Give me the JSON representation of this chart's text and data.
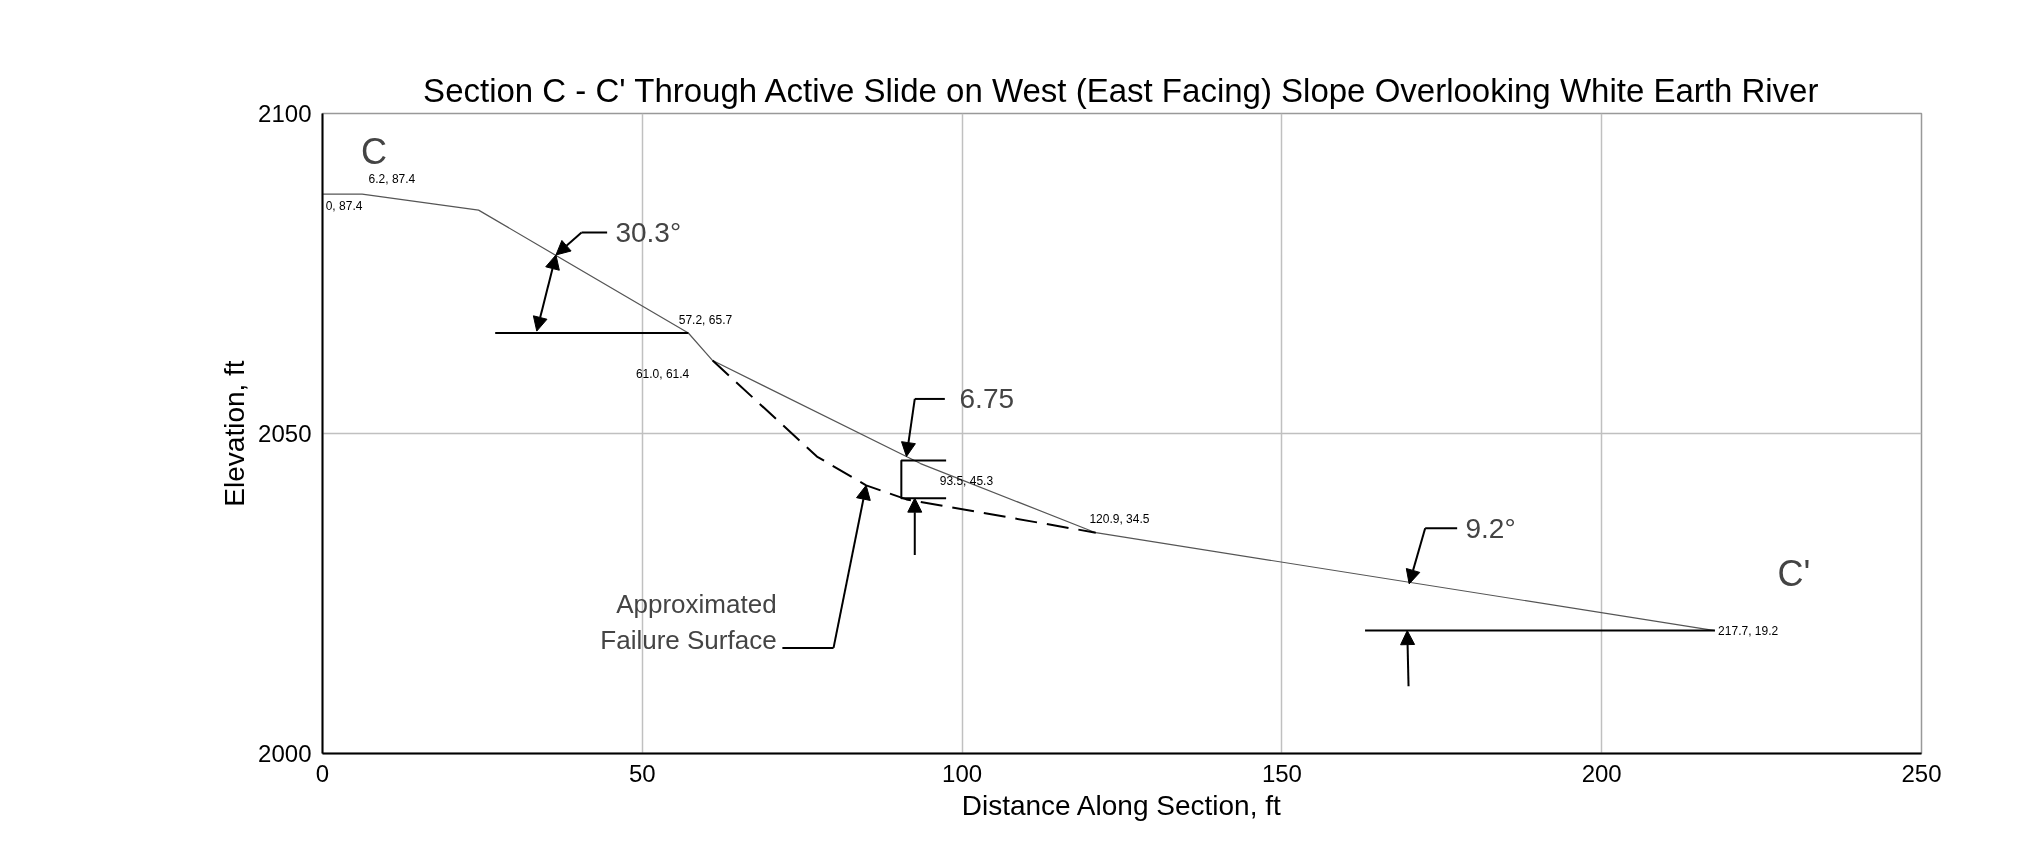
{
  "chart_data": {
    "type": "line",
    "title": "Section C - C' Through Active Slide on West (East Facing) Slope Overlooking White Earth River",
    "xlabel": "Distance Along Section, ft",
    "ylabel": "Elevation, ft",
    "xlim": [
      0,
      250
    ],
    "xticks": [
      0,
      50,
      100,
      150,
      200,
      250
    ],
    "ylim": [
      2000,
      2100
    ],
    "yticks": [
      2000,
      2050,
      2100
    ],
    "grid": true,
    "marker": "none",
    "series": [
      {
        "color": "#555555",
        "line_style": "solid",
        "x": [
          0,
          6.2,
          24.4,
          57.2,
          61.0,
          93.5,
          120.9,
          217.7
        ],
        "values": [
          2087.4,
          2087.4,
          2084.9,
          2065.7,
          2061.4,
          2045.3,
          2034.5,
          2019.2
        ]
      },
      {
        "color": "#000000",
        "line_style": "dashed",
        "x": [
          61.0,
          77.3,
          85.0,
          91.3,
          120.9
        ],
        "values": [
          2061.4,
          2046.4,
          2041.9,
          2039.7,
          2034.5
        ]
      }
    ],
    "annotations": [
      "C",
      "C'",
      {
        "text": "30.3°",
        "x": 36.5,
        "y": 2077.9
      },
      {
        "text": "6.75",
        "x": 91.3,
        "y": 2046.4
      },
      {
        "text": "9.2°",
        "x": 169.9,
        "y": 2026.5
      },
      "Approximated\nFailure Surface",
      {
        "text": "0, 87.4",
        "x": 0,
        "y": 2087.4
      },
      {
        "text": "6.2, 87.4",
        "x": 6.2,
        "y": 2087.4
      },
      {
        "text": "57.2, 65.7",
        "x": 57.2,
        "y": 2065.7
      },
      {
        "text": "61.0, 61.4",
        "x": 61.0,
        "y": 2061.4
      },
      {
        "text": "93.5, 45.3",
        "x": 93.5,
        "y": 2045.3
      },
      {
        "text": "120.9, 34.5",
        "x": 120.9,
        "y": 2034.5
      },
      {
        "text": "217.7, 19.2",
        "x": 217.7,
        "y": 2019.2
      }
    ]
  }
}
